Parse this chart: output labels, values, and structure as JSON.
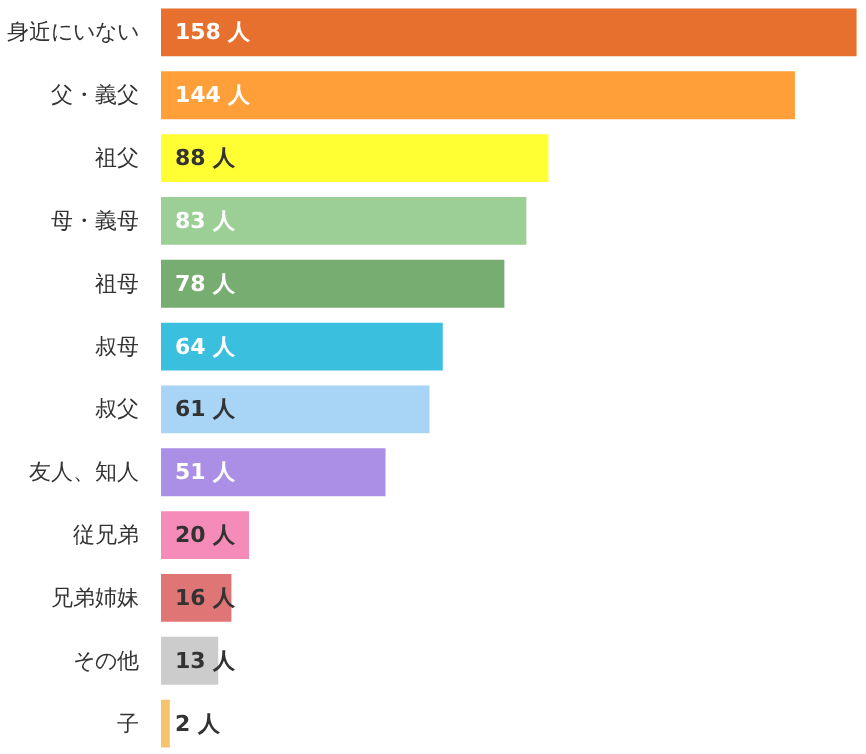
{
  "chart_data": {
    "type": "bar",
    "orientation": "horizontal",
    "categories": [
      "身近にいない",
      "父・義父",
      "祖父",
      "母・義母",
      "祖母",
      "叔母",
      "叔父",
      "友人、知人",
      "従兄弟",
      "兄弟姉妹",
      "その他",
      "子"
    ],
    "values": [
      158,
      144,
      88,
      83,
      78,
      64,
      61,
      51,
      20,
      16,
      13,
      2
    ],
    "colors": [
      "#e8702f",
      "#ff9f3a",
      "#ffff33",
      "#9bcf95",
      "#78ad72",
      "#3bbfdf",
      "#a8d4f5",
      "#ab8ee6",
      "#f58bb8",
      "#e07575",
      "#cccccc",
      "#f6c46a"
    ],
    "value_labels": [
      "158 人",
      "144 人",
      "88 人",
      "83 人",
      "78 人",
      "64 人",
      "61 人",
      "51 人",
      "20 人",
      "16 人",
      "13 人",
      "2 人"
    ],
    "grid": false
  }
}
